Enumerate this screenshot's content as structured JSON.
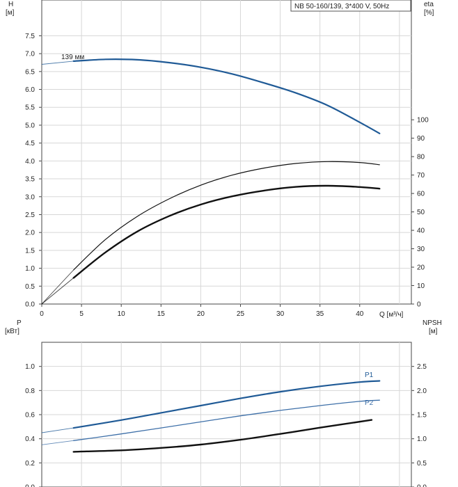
{
  "chart_data": [
    {
      "type": "line",
      "title": "NB 50-160/139, 3*400 V, 50Hz",
      "y_label_top": "H",
      "y_label_bottom": "[м]",
      "y2_label_top": "eta",
      "y2_label_bottom": "[%]",
      "x_label_text": "Q [м³/ч]",
      "x_ticks": [
        "0",
        "5",
        "10",
        "15",
        "20",
        "25",
        "30",
        "35",
        "40"
      ],
      "xlim": [
        0,
        46.5
      ],
      "ylim": [
        0,
        8.5
      ],
      "y2lim": [
        0,
        165
      ],
      "y_ticks": [
        "0.0",
        "0.5",
        "1.0",
        "1.5",
        "2.0",
        "2.5",
        "3.0",
        "3.5",
        "4.0",
        "4.5",
        "5.0",
        "5.5",
        "6.0",
        "6.5",
        "7.0",
        "7.5"
      ],
      "y2_ticks": [
        "0",
        "10",
        "20",
        "30",
        "40",
        "50",
        "60",
        "70",
        "80",
        "90",
        "100"
      ],
      "grid": true,
      "annotations": [
        {
          "text": "139 мм",
          "x": 2.5,
          "y": 6.95
        }
      ],
      "series": [
        {
          "axis": "y",
          "color": "#1f5a96",
          "width": 2.2,
          "extrap": [
            [
              0,
              6.7
            ],
            [
              4,
              6.79
            ]
          ],
          "x": [
            4,
            8,
            12,
            16,
            20,
            24,
            28,
            32,
            36,
            40,
            42.5
          ],
          "y": [
            6.79,
            6.84,
            6.83,
            6.75,
            6.62,
            6.43,
            6.18,
            5.9,
            5.55,
            5.08,
            4.77
          ]
        },
        {
          "axis": "y2",
          "color": "#111111",
          "width": 1.2,
          "extrap": [
            [
              0,
              0
            ],
            [
              4,
              18.5
            ]
          ],
          "x": [
            4,
            8,
            12,
            16,
            20,
            24,
            28,
            32,
            36,
            40,
            42.5
          ],
          "y": [
            18.5,
            35.0,
            47.5,
            57.0,
            64.5,
            70.0,
            73.8,
            76.3,
            77.3,
            76.8,
            75.6
          ]
        },
        {
          "axis": "y2",
          "color": "#111111",
          "width": 2.4,
          "extrap": [
            [
              0,
              0
            ],
            [
              4,
              14.2
            ]
          ],
          "x": [
            4,
            8,
            12,
            16,
            20,
            24,
            28,
            32,
            36,
            40,
            42.5
          ],
          "y": [
            14.2,
            28.0,
            39.3,
            47.7,
            54.0,
            58.5,
            61.6,
            63.6,
            64.2,
            63.5,
            62.6
          ]
        }
      ]
    },
    {
      "type": "line",
      "y_label_top": "P",
      "y_label_bottom": "[кВт]",
      "y2_label_top": "NPSH",
      "y2_label_bottom": "[м]",
      "xlim": [
        0,
        46.5
      ],
      "ylim": [
        0,
        1.2
      ],
      "y2lim": [
        0,
        3.0
      ],
      "y_ticks": [
        "0.0",
        "0.2",
        "0.4",
        "0.6",
        "0.8",
        "1.0"
      ],
      "y2_ticks": [
        "0.0",
        "0.5",
        "1.0",
        "1.5",
        "2.0",
        "2.5"
      ],
      "grid": true,
      "series": [
        {
          "name": "P1",
          "axis": "y",
          "color": "#1f5a96",
          "width": 2.2,
          "extrap": [
            [
              0,
              0.45
            ],
            [
              4,
              0.49
            ]
          ],
          "x": [
            4,
            10,
            15,
            20,
            25,
            30,
            35,
            40,
            42.5
          ],
          "y": [
            0.49,
            0.555,
            0.615,
            0.675,
            0.735,
            0.79,
            0.835,
            0.87,
            0.88
          ]
        },
        {
          "name": "P2",
          "axis": "y",
          "color": "#3d6fa8",
          "width": 1.3,
          "extrap": [
            [
              0,
              0.35
            ],
            [
              4,
              0.385
            ]
          ],
          "x": [
            4,
            10,
            15,
            20,
            25,
            30,
            35,
            40,
            42.5
          ],
          "y": [
            0.385,
            0.44,
            0.49,
            0.54,
            0.59,
            0.635,
            0.675,
            0.71,
            0.72
          ]
        },
        {
          "axis": "y2",
          "color": "#111111",
          "width": 2.4,
          "extrap": [],
          "x": [
            4,
            10,
            15,
            20,
            25,
            30,
            35,
            41.5
          ],
          "y": [
            0.73,
            0.76,
            0.81,
            0.88,
            0.98,
            1.1,
            1.23,
            1.39
          ]
        }
      ]
    }
  ]
}
